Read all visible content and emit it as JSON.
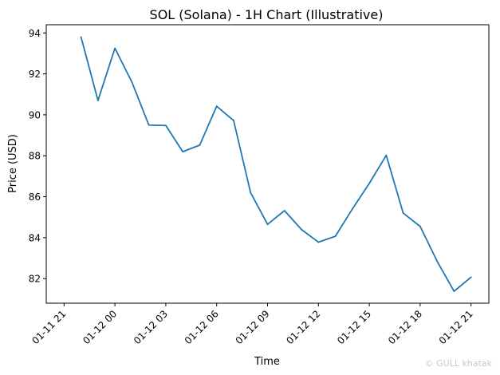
{
  "chart_data": {
    "type": "line",
    "title": "SOL (Solana) - 1H Chart (Illustrative)",
    "xlabel": "Time",
    "ylabel": "Price (USD)",
    "x_tick_labels": [
      "01-11 21",
      "01-12 00",
      "01-12 03",
      "01-12 06",
      "01-12 09",
      "01-12 12",
      "01-12 15",
      "01-12 18",
      "01-12 21"
    ],
    "x_tick_hours": [
      0,
      3,
      6,
      9,
      12,
      15,
      18,
      21,
      24
    ],
    "y_ticks": [
      82,
      84,
      86,
      88,
      90,
      92,
      94
    ],
    "xlim_hours": [
      -1.05,
      25.05
    ],
    "ylim": [
      80.8,
      94.4
    ],
    "grid": false,
    "series": [
      {
        "color": "#1f77b4",
        "x_hours": [
          1,
          2,
          3,
          4,
          5,
          6,
          7,
          8,
          9,
          10,
          11,
          12,
          13,
          14,
          15,
          16,
          17,
          18,
          19,
          20,
          21,
          22,
          23,
          24
        ],
        "values": [
          93.8,
          90.7,
          93.25,
          91.6,
          89.5,
          89.48,
          88.2,
          88.52,
          90.42,
          89.72,
          86.2,
          84.65,
          85.32,
          84.4,
          83.78,
          84.07,
          85.4,
          86.65,
          88.02,
          85.2,
          84.55,
          82.85,
          81.38,
          82.07
        ]
      }
    ]
  },
  "watermark": "© GULL khatak"
}
